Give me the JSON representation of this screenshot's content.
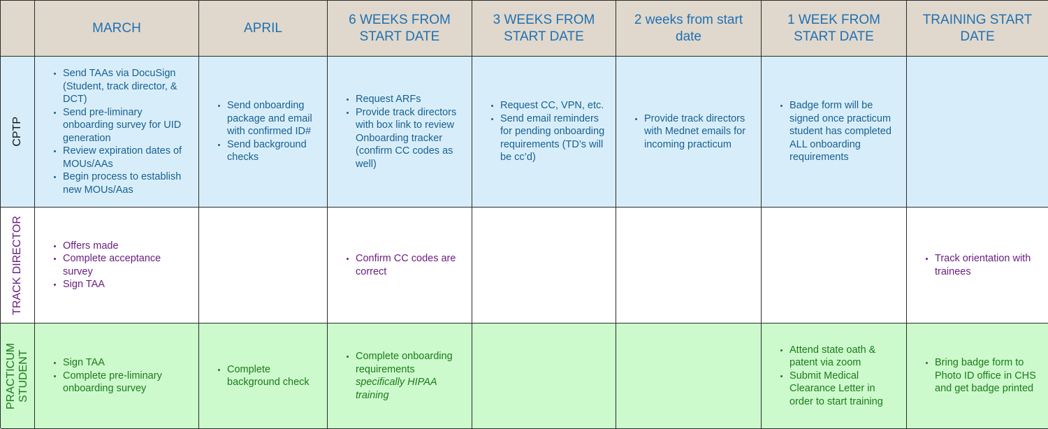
{
  "headers": [
    "MARCH",
    "APRIL",
    "6 WEEKS FROM START DATE",
    "3 WEEKS FROM START DATE",
    "2 weeks from start date",
    "1 WEEK FROM START DATE",
    "TRAINING START DATE"
  ],
  "rows": {
    "cptp": {
      "label": "CPTP",
      "cells": [
        [
          "Send TAAs via DocuSign (Student, track director, & DCT)",
          "Send pre-liminary onboarding survey for UID generation",
          "Review expiration dates of MOUs/AAs",
          "Begin process to establish new MOUs/Aas"
        ],
        [
          "Send onboarding package and email with confirmed ID#",
          "Send background checks"
        ],
        [
          "Request ARFs",
          "Provide track directors with box link to review Onboarding tracker (confirm CC codes as well)"
        ],
        [
          "Request CC, VPN, etc.",
          "Send email reminders for pending onboarding requirements (TD’s will be cc’d)"
        ],
        [
          "Provide track directors with Mednet emails for incoming practicum"
        ],
        [
          "Badge form will be signed once practicum student has completed ALL onboarding requirements"
        ],
        []
      ]
    },
    "track": {
      "label": "TRACK DIRECTOR",
      "cells": [
        [
          "Offers made",
          "Complete acceptance survey",
          "Sign TAA"
        ],
        [],
        [
          "Confirm CC codes are correct"
        ],
        [],
        [],
        [],
        [
          "Track orientation with trainees"
        ]
      ]
    },
    "student": {
      "label": "PRACTICUM STUDENT",
      "cells": [
        [
          "Sign TAA",
          "Complete pre-liminary onboarding survey"
        ],
        [
          "Complete background check"
        ],
        [
          "Complete onboarding requirements",
          "specifically HIPAA training"
        ],
        [],
        [],
        [
          "Attend state oath & patent via zoom",
          "Submit Medical Clearance Letter in order to start training"
        ],
        [
          "Bring badge form to Photo ID office in CHS and get badge printed"
        ]
      ]
    }
  },
  "colors": {
    "header_bg": "#e0d8cc",
    "header_text": "#1f70b3",
    "cptp_bg": "#d7eefa",
    "cptp_text": "#1a5f8f",
    "track_bg": "#ffffff",
    "track_text": "#6a1e80",
    "student_bg": "#ccfacc",
    "student_text": "#1c7a1c"
  }
}
